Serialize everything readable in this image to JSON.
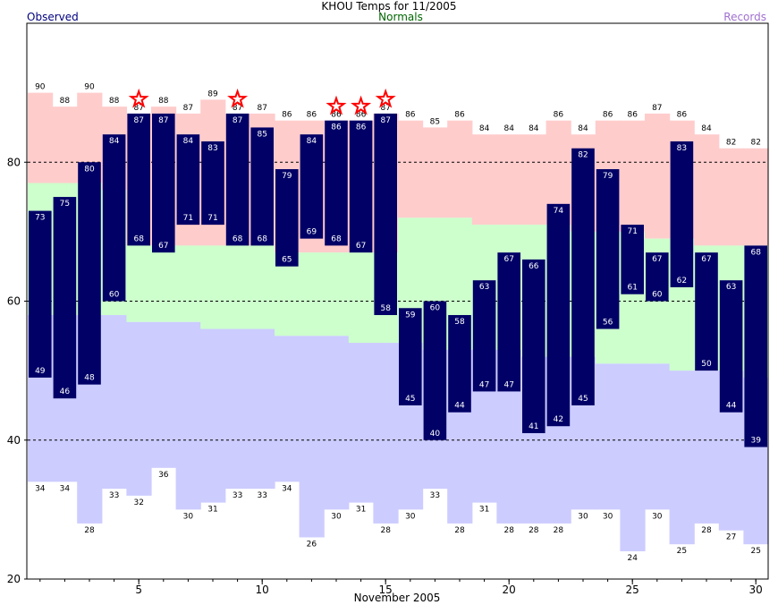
{
  "chart_data": {
    "type": "bar",
    "title": "KHOU Temps for 11/2005",
    "legend": {
      "observed": "Observed",
      "normals": "Normals",
      "records": "Records"
    },
    "xlabel": "November 2005",
    "ylabel": "",
    "xlim": [
      1,
      30
    ],
    "ylim": [
      20,
      100
    ],
    "yticks": [
      20,
      40,
      60,
      80
    ],
    "xticks": [
      5,
      10,
      15,
      20,
      25,
      30
    ],
    "grid_y": [
      40,
      60,
      80
    ],
    "days": [
      1,
      2,
      3,
      4,
      5,
      6,
      7,
      8,
      9,
      10,
      11,
      12,
      13,
      14,
      15,
      16,
      17,
      18,
      19,
      20,
      21,
      22,
      23,
      24,
      25,
      26,
      27,
      28,
      29,
      30
    ],
    "observed_high": [
      73,
      75,
      80,
      84,
      87,
      87,
      84,
      83,
      87,
      85,
      79,
      84,
      86,
      86,
      87,
      59,
      60,
      58,
      63,
      67,
      66,
      74,
      82,
      79,
      71,
      67,
      83,
      67,
      63,
      68
    ],
    "observed_low": [
      49,
      46,
      48,
      60,
      68,
      67,
      71,
      71,
      68,
      68,
      65,
      69,
      68,
      67,
      58,
      45,
      40,
      44,
      47,
      47,
      41,
      42,
      45,
      56,
      61,
      60,
      62,
      50,
      44,
      39
    ],
    "normal_high": [
      77,
      77,
      77,
      76,
      68,
      68,
      68,
      68,
      68,
      68,
      67,
      67,
      67,
      67,
      67,
      72,
      72,
      72,
      71,
      71,
      71,
      71,
      70,
      70,
      70,
      69,
      69,
      68,
      68,
      68
    ],
    "normal_low": [
      58,
      58,
      58,
      58,
      57,
      57,
      57,
      56,
      56,
      56,
      55,
      55,
      55,
      54,
      54,
      54,
      53,
      53,
      53,
      53,
      52,
      52,
      52,
      51,
      51,
      51,
      50,
      50,
      50,
      49
    ],
    "record_high": [
      90,
      88,
      90,
      88,
      87,
      88,
      87,
      89,
      87,
      87,
      86,
      86,
      86,
      86,
      87,
      86,
      85,
      86,
      84,
      84,
      84,
      86,
      84,
      86,
      86,
      87,
      86,
      84,
      82,
      82
    ],
    "record_low": [
      34,
      34,
      28,
      33,
      32,
      36,
      30,
      31,
      33,
      33,
      34,
      26,
      30,
      31,
      28,
      30,
      33,
      28,
      31,
      28,
      28,
      28,
      30,
      30,
      24,
      30,
      25,
      28,
      27,
      25
    ],
    "record_days": [
      5,
      9,
      13,
      14,
      15
    ],
    "colors": {
      "observed": "#000066",
      "normal_band": "#ccffcc",
      "record_high_band": "#ffcccc",
      "record_low_band": "#ccccff",
      "star": "#ff0000",
      "grid": "#000000"
    }
  }
}
